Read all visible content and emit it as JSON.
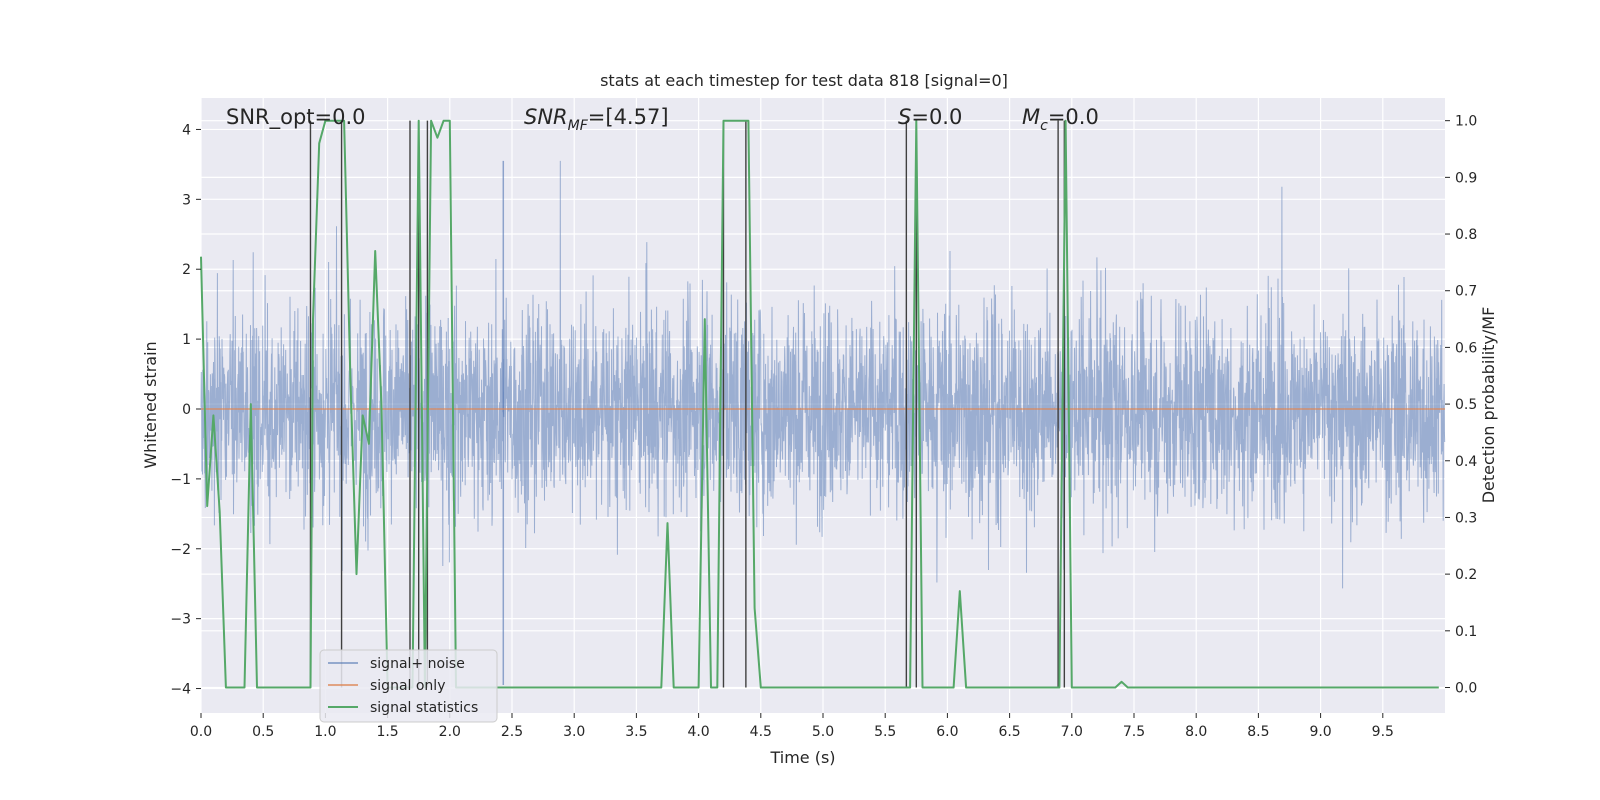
{
  "chart_data": {
    "type": "line",
    "title": "stats at each timestep for test data 818 [signal=0]",
    "xlabel": "Time (s)",
    "ylabel": "Whitened strain",
    "ylabel_right": "Detection probability/MF",
    "xlim": [
      0,
      10
    ],
    "ylim": [
      -4.35,
      4.45
    ],
    "ylim_right": [
      -0.045,
      1.04
    ],
    "x_ticks": [
      "0.0",
      "0.5",
      "1.0",
      "1.5",
      "2.0",
      "2.5",
      "3.0",
      "3.5",
      "4.0",
      "4.5",
      "5.0",
      "5.5",
      "6.0",
      "6.5",
      "7.0",
      "7.5",
      "8.0",
      "8.5",
      "9.0",
      "9.5"
    ],
    "x_tick_values": [
      0,
      0.5,
      1,
      1.5,
      2,
      2.5,
      3,
      3.5,
      4,
      4.5,
      5,
      5.5,
      6,
      6.5,
      7,
      7.5,
      8,
      8.5,
      9,
      9.5
    ],
    "y_ticks": [
      "−4",
      "−3",
      "−2",
      "−1",
      "0",
      "1",
      "2",
      "3",
      "4"
    ],
    "y_tick_values": [
      -4,
      -3,
      -2,
      -1,
      0,
      1,
      2,
      3,
      4
    ],
    "y_right_ticks": [
      "0.0",
      "0.1",
      "0.2",
      "0.3",
      "0.4",
      "0.5",
      "0.6",
      "0.7",
      "0.8",
      "0.9",
      "1.0"
    ],
    "y_right_tick_values": [
      0,
      0.1,
      0.2,
      0.3,
      0.4,
      0.5,
      0.6,
      0.7,
      0.8,
      0.9,
      1.0
    ],
    "grid": true,
    "legend_placement": "lower-left",
    "annotations": {
      "snr_opt": "SNR_opt=0.0",
      "snr_mf_main": "SNR",
      "snr_mf_sub": "MF",
      "snr_mf_value": "=[4.57]",
      "s_main": "S",
      "s_value": "=0.0",
      "mc_main": "M",
      "mc_sub": "c",
      "mc_value": "=0.0"
    },
    "series": [
      {
        "name": "signal+ noise",
        "color": "#4c72b0",
        "description_of_shape": "dense noise trace, mostly within ±1.6, spikes to ±3.5"
      },
      {
        "name": "signal only",
        "color": "#dd8452",
        "values_constant": 0.0
      },
      {
        "name": "signal statistics",
        "color": "#55a868",
        "x": [
          0.0,
          0.05,
          0.1,
          0.15,
          0.2,
          0.3,
          0.35,
          0.4,
          0.45,
          0.5,
          0.55,
          0.6,
          0.65,
          0.7,
          0.75,
          0.8,
          0.85,
          0.88,
          0.9,
          0.95,
          1.0,
          1.05,
          1.1,
          1.15,
          1.2,
          1.25,
          1.3,
          1.35,
          1.4,
          1.45,
          1.5,
          1.55,
          1.6,
          1.65,
          1.7,
          1.75,
          1.8,
          1.85,
          1.9,
          1.95,
          2.0,
          2.05,
          2.1,
          2.15,
          2.2,
          2.5,
          3.0,
          3.5,
          3.55,
          3.6,
          3.65,
          3.7,
          3.75,
          3.8,
          3.85,
          3.9,
          3.95,
          4.0,
          4.05,
          4.1,
          4.15,
          4.2,
          4.25,
          4.3,
          4.35,
          4.4,
          4.45,
          4.5,
          4.6,
          5.0,
          5.1,
          5.2,
          5.5,
          5.65,
          5.7,
          5.75,
          5.8,
          5.85,
          5.9,
          6.0,
          6.05,
          6.1,
          6.15,
          6.2,
          6.3,
          6.5,
          6.8,
          6.9,
          6.95,
          7.0,
          7.05,
          7.1,
          7.2,
          7.3,
          7.35,
          7.4,
          7.45,
          7.5,
          8.0,
          9.0,
          9.95
        ],
        "values": [
          0.76,
          0.32,
          0.48,
          0.31,
          0.0,
          0.0,
          0.0,
          0.5,
          0.0,
          0.0,
          0.0,
          0.0,
          0.0,
          0.0,
          0.0,
          0.0,
          0.0,
          0.0,
          0.65,
          0.96,
          1.0,
          1.0,
          1.0,
          1.0,
          0.55,
          0.2,
          0.48,
          0.43,
          0.77,
          0.5,
          0.0,
          0.0,
          0.0,
          0.0,
          0.0,
          1.0,
          0.0,
          1.0,
          0.97,
          1.0,
          1.0,
          0.0,
          0.0,
          0.0,
          0.0,
          0.0,
          0.0,
          0.0,
          0.0,
          0.0,
          0.0,
          0.0,
          0.29,
          0.0,
          0.0,
          0.0,
          0.0,
          0.0,
          0.65,
          0.0,
          0.0,
          1.0,
          1.0,
          1.0,
          1.0,
          1.0,
          0.14,
          0.0,
          0.0,
          0.0,
          0.0,
          0.0,
          0.0,
          0.0,
          0.0,
          1.0,
          0.0,
          0.0,
          0.0,
          0.0,
          0.0,
          0.17,
          0.0,
          0.0,
          0.0,
          0.0,
          0.0,
          0.0,
          1.0,
          0.0,
          0.0,
          0.0,
          0.0,
          0.0,
          0.0,
          0.01,
          0.0,
          0.0,
          0.0,
          0.0,
          0.0
        ]
      }
    ],
    "vertical_lines_x": [
      0.88,
      1.13,
      1.68,
      1.75,
      1.82,
      4.2,
      4.38,
      5.67,
      5.75,
      6.89,
      6.94
    ],
    "noise_line_x": [
      2.43
    ]
  },
  "colors": {
    "axes_bg": "#eaeaf2",
    "grid": "#ffffff",
    "noise": "#4c72b0",
    "signal_only": "#dd8452",
    "stats": "#55a868",
    "vlines": "#404040"
  }
}
